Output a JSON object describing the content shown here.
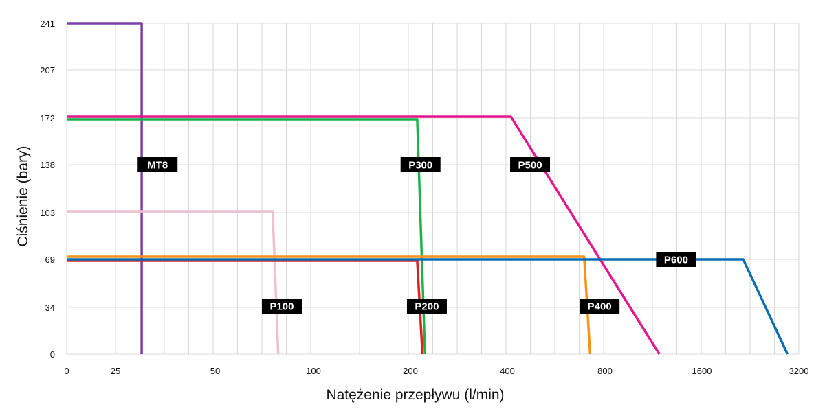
{
  "chart_data": {
    "type": "line",
    "xlabel": "Natężenie przepływu (l/min)",
    "ylabel": "Ciśnienie (bary)",
    "x_scale": "log2",
    "x_ticks": [
      {
        "value": 0,
        "label": "0"
      },
      {
        "value": 25,
        "label": "25"
      },
      {
        "value": 50,
        "label": "50"
      },
      {
        "value": 100,
        "label": "100"
      },
      {
        "value": 200,
        "label": "200"
      },
      {
        "value": 400,
        "label": "400"
      },
      {
        "value": 800,
        "label": "800"
      },
      {
        "value": 1600,
        "label": "1600"
      },
      {
        "value": 3200,
        "label": "3200"
      }
    ],
    "y_ticks": [
      0,
      34,
      69,
      103,
      138,
      172,
      207,
      241
    ],
    "ylim": [
      0,
      241
    ],
    "grid": true,
    "legend": "none",
    "series": [
      {
        "name": "MT8",
        "color": "#7b3fa8",
        "points": [
          [
            0,
            241
          ],
          [
            30,
            241
          ],
          [
            30,
            0
          ]
        ],
        "label_at": [
          33.5,
          138
        ]
      },
      {
        "name": "P100",
        "color": "#ef c0d0",
        "points": [
          [
            0,
            104
          ],
          [
            75,
            104
          ],
          [
            78,
            0
          ]
        ],
        "label_at": [
          80,
          35
        ]
      },
      {
        "name": "P200",
        "color": "#e02020",
        "points": [
          [
            0,
            68
          ],
          [
            210,
            68
          ],
          [
            218,
            0
          ]
        ],
        "label_at": [
          225,
          35
        ]
      },
      {
        "name": "P300",
        "color": "#1db34a",
        "points": [
          [
            0,
            171
          ],
          [
            210,
            171
          ],
          [
            222,
            0
          ]
        ],
        "label_at": [
          215,
          138
        ]
      },
      {
        "name": "P400",
        "color": "#f5941d",
        "points": [
          [
            0,
            71
          ],
          [
            690,
            71
          ],
          [
            720,
            0
          ]
        ],
        "label_at": [
          770,
          35
        ]
      },
      {
        "name": "P500",
        "color": "#e6168e",
        "points": [
          [
            0,
            173
          ],
          [
            410,
            173
          ],
          [
            1180,
            0
          ]
        ],
        "label_at": [
          470,
          138
        ]
      },
      {
        "name": "P600",
        "color": "#0a6db3",
        "points": [
          [
            0,
            69
          ],
          [
            2150,
            69
          ],
          [
            2950,
            0
          ]
        ],
        "label_at": [
          1330,
          69
        ]
      }
    ]
  }
}
